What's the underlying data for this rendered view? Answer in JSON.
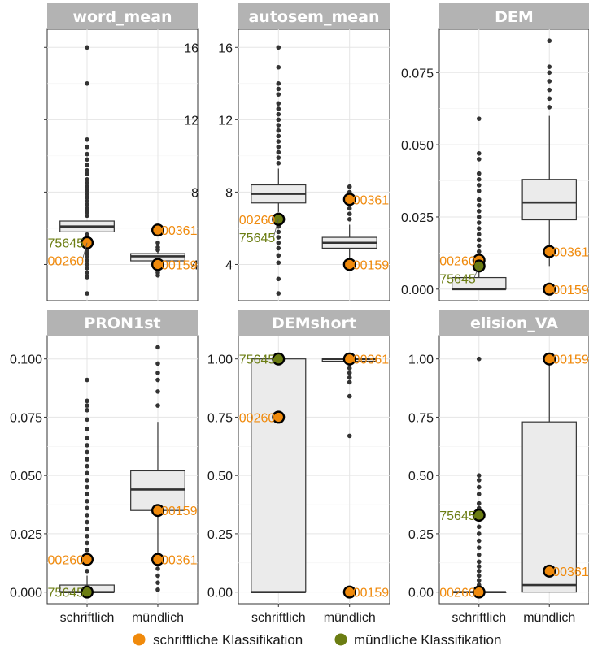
{
  "colors": {
    "schriftlich_point": "#f08a0c",
    "muendlich_point": "#6b7d12",
    "strip_bg": "#b3b3b3",
    "box_fill": "#ebebeb",
    "outlier": "#333333"
  },
  "legend": {
    "items": [
      {
        "label": "schriftliche Klassifikation",
        "color": "#f08a0c"
      },
      {
        "label": "mündliche Klassifikation",
        "color": "#6b7d12"
      }
    ]
  },
  "chart_data": [
    {
      "type": "box",
      "title": "word_mean",
      "categories": [
        "schriftlich",
        "mündlich"
      ],
      "ylim": [
        2.0,
        17.0
      ],
      "yticks": [
        4,
        8,
        12,
        16
      ],
      "ytick_labels": [
        "4",
        "8",
        "12",
        "16"
      ],
      "boxes": [
        {
          "category": "schriftlich",
          "min": 5.8,
          "q1": 5.8,
          "median": 6.1,
          "q3": 6.4,
          "max": 6.4,
          "outliers": [
            5.65,
            5.5,
            5.4,
            5.3,
            5.1,
            4.95,
            4.8,
            4.6,
            4.4,
            4.2,
            4.0,
            3.8,
            3.55,
            3.3,
            2.4,
            6.7,
            6.9,
            7.1,
            7.3,
            7.5,
            7.7,
            7.9,
            8.1,
            8.3,
            8.5,
            8.7,
            9.0,
            9.2,
            9.5,
            9.8,
            10.1,
            10.5,
            10.9,
            14.0,
            16.0
          ]
        },
        {
          "category": "mündlich",
          "min": 4.0,
          "q1": 4.2,
          "median": 4.45,
          "q3": 4.6,
          "max": 4.7,
          "outliers": [
            3.85,
            3.55,
            3.4,
            4.8,
            4.95,
            5.2
          ]
        }
      ],
      "highlights": [
        {
          "label": "75645",
          "category": "schriftlich",
          "y": 5.2,
          "kind": "muendlich"
        },
        {
          "label": "00260",
          "category": "schriftlich",
          "y": 5.2,
          "kind": "schriftlich"
        },
        {
          "label": "00361",
          "category": "mündlich",
          "y": 5.9,
          "kind": "schriftlich"
        },
        {
          "label": "00159",
          "category": "mündlich",
          "y": 4.0,
          "kind": "schriftlich"
        }
      ]
    },
    {
      "type": "box",
      "title": "autosem_mean",
      "categories": [
        "schriftlich",
        "mündlich"
      ],
      "ylim": [
        2.0,
        17.0
      ],
      "yticks": [
        4,
        8,
        12,
        16
      ],
      "ytick_labels": [
        "4",
        "8",
        "12",
        "16"
      ],
      "boxes": [
        {
          "category": "schriftlich",
          "min": 6.9,
          "q1": 7.4,
          "median": 7.9,
          "q3": 8.4,
          "max": 9.3,
          "outliers": [
            6.6,
            6.3,
            6.1,
            5.8,
            5.5,
            5.2,
            4.9,
            4.5,
            4.1,
            3.2,
            2.4,
            9.6,
            9.9,
            10.2,
            10.5,
            10.8,
            11.1,
            11.4,
            11.7,
            12.0,
            12.3,
            12.6,
            12.9,
            13.4,
            13.7,
            14.0,
            14.9,
            16.0
          ]
        },
        {
          "category": "mündlich",
          "min": 4.3,
          "q1": 4.9,
          "median": 5.2,
          "q3": 5.5,
          "max": 6.2,
          "outliers": [
            4.05,
            3.9,
            6.5,
            6.8,
            7.1,
            7.4,
            7.7,
            8.0,
            8.3
          ]
        }
      ],
      "highlights": [
        {
          "label": "00260",
          "category": "schriftlich",
          "y": 6.5,
          "kind": "schriftlich"
        },
        {
          "label": "75645",
          "category": "schriftlich",
          "y": 6.5,
          "kind": "muendlich"
        },
        {
          "label": "00361",
          "category": "mündlich",
          "y": 7.6,
          "kind": "schriftlich"
        },
        {
          "label": "00159",
          "category": "mündlich",
          "y": 4.0,
          "kind": "schriftlich"
        }
      ]
    },
    {
      "type": "box",
      "title": "DEM",
      "categories": [
        "schriftlich",
        "mündlich"
      ],
      "ylim": [
        -0.004,
        0.09
      ],
      "yticks": [
        0.0,
        0.025,
        0.05,
        0.075
      ],
      "ytick_labels": [
        "0.000",
        "0.025",
        "0.050",
        "0.075"
      ],
      "boxes": [
        {
          "category": "schriftlich",
          "min": 0.0,
          "q1": 0.0,
          "median": 0.0,
          "q3": 0.004,
          "max": 0.009,
          "outliers": [
            0.011,
            0.013,
            0.015,
            0.017,
            0.019,
            0.021,
            0.023,
            0.025,
            0.027,
            0.029,
            0.031,
            0.034,
            0.036,
            0.038,
            0.04,
            0.045,
            0.047,
            0.059
          ]
        },
        {
          "category": "mündlich",
          "min": 0.008,
          "q1": 0.024,
          "median": 0.03,
          "q3": 0.038,
          "max": 0.06,
          "outliers": [
            0.063,
            0.066,
            0.069,
            0.072,
            0.075,
            0.077,
            0.086
          ]
        }
      ],
      "highlights": [
        {
          "label": "00260",
          "category": "schriftlich",
          "y": 0.01,
          "kind": "schriftlich"
        },
        {
          "label": "75645",
          "category": "schriftlich",
          "y": 0.008,
          "kind": "muendlich"
        },
        {
          "label": "00361",
          "category": "mündlich",
          "y": 0.013,
          "kind": "schriftlich"
        },
        {
          "label": "00159",
          "category": "mündlich",
          "y": 0.0,
          "kind": "schriftlich"
        }
      ]
    },
    {
      "type": "box",
      "title": "PRON1st",
      "categories": [
        "schriftlich",
        "mündlich"
      ],
      "ylim": [
        -0.005,
        0.11
      ],
      "yticks": [
        0.0,
        0.025,
        0.05,
        0.075,
        0.1
      ],
      "ytick_labels": [
        "0.000",
        "0.025",
        "0.050",
        "0.075",
        "0.100"
      ],
      "boxes": [
        {
          "category": "schriftlich",
          "min": 0.0,
          "q1": 0.0,
          "median": 0.0,
          "q3": 0.003,
          "max": 0.007,
          "outliers": [
            0.009,
            0.012,
            0.015,
            0.018,
            0.021,
            0.024,
            0.027,
            0.03,
            0.033,
            0.036,
            0.039,
            0.042,
            0.045,
            0.048,
            0.051,
            0.054,
            0.057,
            0.06,
            0.063,
            0.066,
            0.07,
            0.074,
            0.078,
            0.08,
            0.082,
            0.091
          ]
        },
        {
          "category": "mündlich",
          "min": 0.012,
          "q1": 0.035,
          "median": 0.044,
          "q3": 0.052,
          "max": 0.073,
          "outliers": [
            0.001,
            0.004,
            0.007,
            0.01,
            0.08,
            0.086,
            0.091,
            0.094,
            0.098,
            0.105
          ]
        }
      ],
      "highlights": [
        {
          "label": "00260",
          "category": "schriftlich",
          "y": 0.014,
          "kind": "schriftlich"
        },
        {
          "label": "75645",
          "category": "schriftlich",
          "y": 0.0,
          "kind": "muendlich"
        },
        {
          "label": "00159",
          "category": "mündlich",
          "y": 0.035,
          "kind": "schriftlich"
        },
        {
          "label": "00361",
          "category": "mündlich",
          "y": 0.014,
          "kind": "schriftlich"
        }
      ]
    },
    {
      "type": "box",
      "title": "DEMshort",
      "categories": [
        "schriftlich",
        "mündlich"
      ],
      "ylim": [
        -0.05,
        1.1
      ],
      "yticks": [
        0.0,
        0.25,
        0.5,
        0.75,
        1.0
      ],
      "ytick_labels": [
        "0.00",
        "0.25",
        "0.50",
        "0.75",
        "1.00"
      ],
      "boxes": [
        {
          "category": "schriftlich",
          "min": 0.0,
          "q1": 0.0,
          "median": 0.0,
          "q3": 1.0,
          "max": 1.0,
          "outliers": []
        },
        {
          "category": "mündlich",
          "min": 0.99,
          "q1": 0.99,
          "median": 1.0,
          "q3": 1.0,
          "max": 1.0,
          "outliers": [
            0.98,
            0.96,
            0.94,
            0.92,
            0.9,
            0.84,
            0.67
          ]
        }
      ],
      "highlights": [
        {
          "label": "75645",
          "category": "schriftlich",
          "y": 1.0,
          "kind": "muendlich"
        },
        {
          "label": "00260",
          "category": "schriftlich",
          "y": 0.75,
          "kind": "schriftlich"
        },
        {
          "label": "00361",
          "category": "mündlich",
          "y": 1.0,
          "kind": "schriftlich"
        },
        {
          "label": "00159",
          "category": "mündlich",
          "y": 0.0,
          "kind": "schriftlich"
        }
      ]
    },
    {
      "type": "box",
      "title": "elision_VA",
      "categories": [
        "schriftlich",
        "mündlich"
      ],
      "ylim": [
        -0.05,
        1.1
      ],
      "yticks": [
        0.0,
        0.25,
        0.5,
        0.75,
        1.0
      ],
      "ytick_labels": [
        "0.00",
        "0.25",
        "0.50",
        "0.75",
        "1.00"
      ],
      "boxes": [
        {
          "category": "schriftlich",
          "min": 0.0,
          "q1": 0.0,
          "median": 0.0,
          "q3": 0.0,
          "max": 0.0,
          "outliers": [
            0.01,
            0.03,
            0.05,
            0.07,
            0.09,
            0.11,
            0.13,
            0.16,
            0.19,
            0.22,
            0.25,
            0.28,
            0.31,
            0.36,
            0.38,
            0.42,
            0.45,
            0.48,
            0.5,
            1.0
          ]
        },
        {
          "category": "mündlich",
          "min": 0.0,
          "q1": 0.0,
          "median": 0.03,
          "q3": 0.73,
          "max": 1.0,
          "outliers": []
        }
      ],
      "highlights": [
        {
          "label": "75645",
          "category": "schriftlich",
          "y": 0.33,
          "kind": "muendlich"
        },
        {
          "label": "00260",
          "category": "schriftlich",
          "y": 0.0,
          "kind": "schriftlich"
        },
        {
          "label": "00159",
          "category": "mündlich",
          "y": 1.0,
          "kind": "schriftlich"
        },
        {
          "label": "00361",
          "category": "mündlich",
          "y": 0.09,
          "kind": "schriftlich"
        }
      ]
    }
  ]
}
